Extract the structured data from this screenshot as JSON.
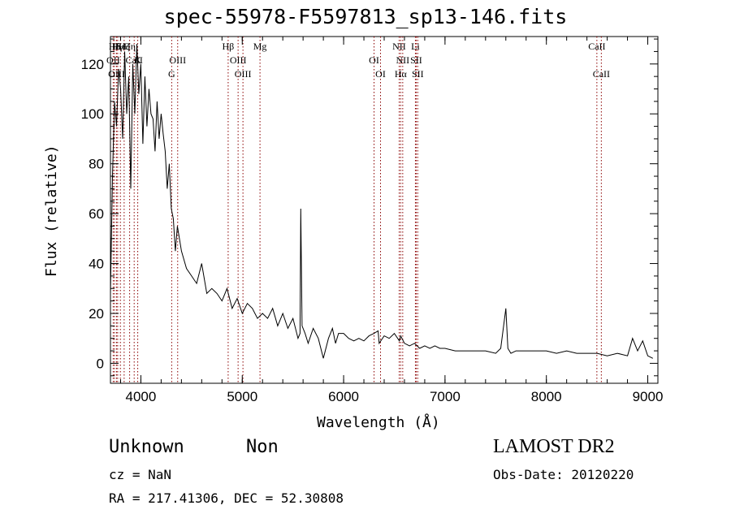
{
  "header": {
    "title": "spec-55978-F5597813_sp13-146.fits"
  },
  "info": {
    "class_label": "Unknown",
    "subclass_label": "Non",
    "cz": "cz = NaN",
    "radec": "RA = 217.41306, DEC =  52.30808",
    "survey": "LAMOST DR2",
    "obs_date": "Obs-Date: 20120220"
  },
  "chart_data": {
    "type": "line",
    "title": "spec-55978-F5597813_sp13-146.fits",
    "xlabel": "Wavelength (Å)",
    "ylabel": "Flux (relative)",
    "xlim": [
      3700,
      9100
    ],
    "ylim": [
      -8,
      131
    ],
    "xticks": [
      4000,
      5000,
      6000,
      7000,
      8000,
      9000
    ],
    "yticks": [
      0,
      20,
      40,
      60,
      80,
      100,
      120
    ],
    "grid": false,
    "colors": {
      "spectrum": "#000000",
      "line_markers": "#8b0000",
      "axes": "#000000"
    },
    "series": [
      {
        "x": [
          3700,
          3720,
          3740,
          3760,
          3780,
          3800,
          3820,
          3840,
          3860,
          3880,
          3900,
          3920,
          3940,
          3960,
          3980,
          4000,
          4020,
          4040,
          4060,
          4080,
          4100,
          4120,
          4140,
          4160,
          4180,
          4200,
          4220,
          4240,
          4260,
          4280,
          4300,
          4320,
          4340,
          4360,
          4380,
          4400,
          4450,
          4500,
          4550,
          4600,
          4650,
          4700,
          4750,
          4800,
          4850,
          4900,
          4950,
          5000,
          5050,
          5100,
          5150,
          5200,
          5250,
          5300,
          5350,
          5400,
          5450,
          5500,
          5550,
          5570,
          5577,
          5590,
          5620,
          5650,
          5700,
          5750,
          5800,
          5850,
          5890,
          5920,
          5950,
          6000,
          6050,
          6100,
          6150,
          6200,
          6250,
          6300,
          6340,
          6350,
          6400,
          6450,
          6500,
          6550,
          6563,
          6600,
          6650,
          6700,
          6750,
          6800,
          6850,
          6900,
          6950,
          7000,
          7100,
          7200,
          7300,
          7400,
          7500,
          7550,
          7600,
          7620,
          7650,
          7700,
          7800,
          7900,
          8000,
          8100,
          8200,
          8300,
          8400,
          8500,
          8600,
          8700,
          8800,
          8850,
          8900,
          8950,
          9000,
          9050
        ],
        "y": [
          28,
          75,
          105,
          95,
          118,
          110,
          90,
          125,
          100,
          115,
          70,
          120,
          100,
          128,
          108,
          120,
          88,
          115,
          95,
          110,
          100,
          98,
          85,
          105,
          90,
          100,
          92,
          85,
          70,
          80,
          62,
          58,
          45,
          55,
          50,
          45,
          38,
          35,
          32,
          40,
          28,
          30,
          28,
          25,
          30,
          22,
          26,
          20,
          24,
          22,
          18,
          20,
          18,
          22,
          15,
          20,
          14,
          18,
          10,
          12,
          62,
          15,
          12,
          8,
          14,
          10,
          2,
          10,
          14,
          8,
          12,
          12,
          10,
          9,
          10,
          9,
          11,
          12,
          13,
          8,
          11,
          10,
          12,
          9,
          11,
          8,
          7,
          8,
          6,
          7,
          6,
          7,
          6,
          6,
          5,
          5,
          5,
          5,
          4,
          6,
          22,
          6,
          4,
          5,
          5,
          5,
          5,
          4,
          5,
          4,
          4,
          4,
          3,
          4,
          3,
          10,
          5,
          9,
          3,
          2
        ]
      }
    ],
    "line_markers": {
      "top": [
        {
          "label": "Hδ",
          "x": 3740
        },
        {
          "label": "Hγ",
          "x": 3771
        },
        {
          "label": "Hε",
          "x": 3798
        },
        {
          "label": "Hζ",
          "x": 3835
        },
        {
          "label": "Hη",
          "x": 3889
        },
        {
          "label": "Hβ",
          "x": 4861
        },
        {
          "label": "Mg",
          "x": 5175
        },
        {
          "label": "NII",
          "x": 6548
        },
        {
          "label": "Li",
          "x": 6708
        },
        {
          "label": "CaII",
          "x": 8498
        }
      ],
      "middle": [
        {
          "label": "OII",
          "x": 3727
        },
        {
          "label": "CaII",
          "x": 3934
        },
        {
          "label": "K",
          "x": 3969
        },
        {
          "label": "OIII",
          "x": 4363
        },
        {
          "label": "OIII",
          "x": 4959
        },
        {
          "label": "OI",
          "x": 6300
        },
        {
          "label": "NII",
          "x": 6583
        },
        {
          "label": "SII",
          "x": 6716
        }
      ],
      "bottom": [
        {
          "label": "OIII",
          "x": 3760
        },
        {
          "label": "G",
          "x": 4304
        },
        {
          "label": "OIII",
          "x": 5007
        },
        {
          "label": "OI",
          "x": 6364
        },
        {
          "label": "Hα",
          "x": 6563
        },
        {
          "label": "SII",
          "x": 6731
        },
        {
          "label": "CaII",
          "x": 8542
        }
      ]
    }
  }
}
